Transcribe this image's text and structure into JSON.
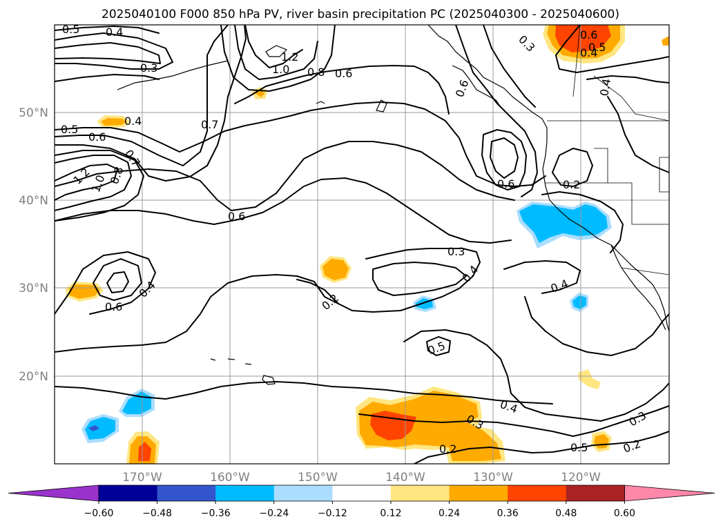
{
  "title": "2025040100 F000 850 hPa PV, river basin precipitation PC (2025040300 - 2025040600)",
  "lat_labels": [
    "50°N",
    "40°N",
    "30°N",
    "20°N"
  ],
  "lon_labels": [
    "170°W",
    "160°W",
    "150°W",
    "140°W",
    "130°W",
    "120°W"
  ],
  "contour_labels": [
    "0.5",
    "0.4",
    "0.3",
    "1.2",
    "1.0",
    "0.8",
    "0.6",
    "0.7",
    "0.4",
    "0.5",
    "0.6",
    "0.7",
    "1.2",
    "1.0",
    "0.8",
    "0.6",
    "0.6",
    "0.3",
    "0.4",
    "0.2",
    "0.4",
    "0.6",
    "0.2",
    "0.5",
    "0.4",
    "0.3",
    "0.2",
    "0.5",
    "0.3",
    "0.2",
    "0.6",
    "0.5",
    "0.4",
    "0.3",
    "0.4",
    "0.6"
  ],
  "colorbar": {
    "ticks": [
      "−0.60",
      "−0.48",
      "−0.36",
      "−0.24",
      "−0.12",
      "0.12",
      "0.24",
      "0.36",
      "0.48",
      "0.60"
    ],
    "colors": [
      "#9933cc",
      "#000099",
      "#3355cc",
      "#00bbff",
      "#aaddff",
      "#ffffff",
      "#ffe680",
      "#ffaa00",
      "#ff4400",
      "#aa2222",
      "#ff88aa"
    ]
  },
  "shading_colors": {
    "light_orange": "#ffe680",
    "orange": "#ffaa00",
    "red_orange": "#ff4400",
    "cyan": "#00bbff",
    "light_blue": "#aaddff",
    "blue": "#3355cc"
  }
}
